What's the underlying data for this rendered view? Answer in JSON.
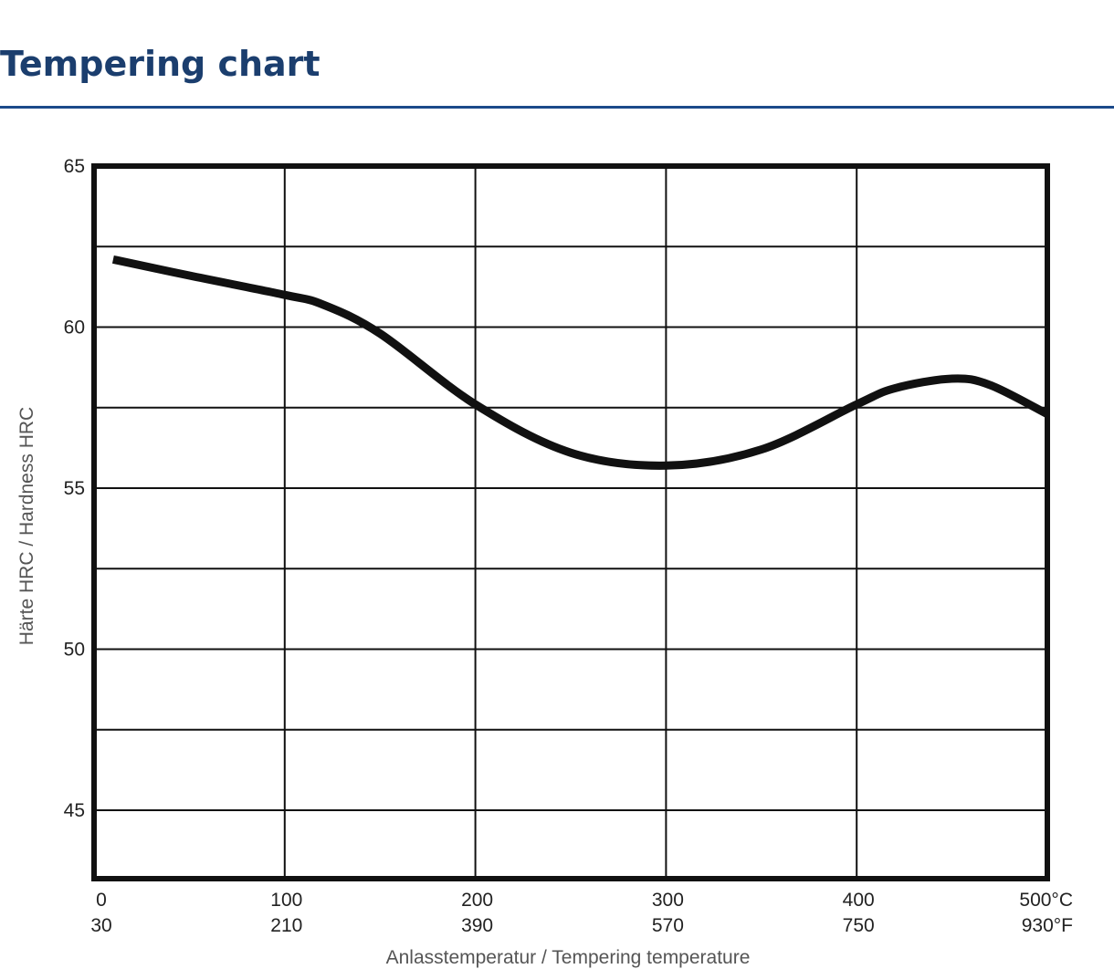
{
  "page": {
    "title": "Tempering chart"
  },
  "chart_data": {
    "type": "line",
    "title": "",
    "xlabel": "Anlasstemperatur / Tempering temperature",
    "ylabel": "Härte HRC / Hardness HRC",
    "xlim": [
      0,
      500
    ],
    "ylim": [
      42.875,
      65
    ],
    "grid": true,
    "line_color": "#111111",
    "y_ticks": [
      {
        "value": 65,
        "label": "65"
      },
      {
        "value": 60,
        "label": "60"
      },
      {
        "value": 55,
        "label": "55"
      },
      {
        "value": 50,
        "label": "50"
      },
      {
        "value": 45,
        "label": "45"
      }
    ],
    "y_gridlines": [
      62.5,
      60,
      57.5,
      55,
      52.5,
      50,
      47.5,
      45
    ],
    "x_ticks": [
      {
        "value": 0,
        "label_c": "0",
        "label_f": "30"
      },
      {
        "value": 100,
        "label_c": "100",
        "label_f": "210"
      },
      {
        "value": 200,
        "label_c": "200",
        "label_f": "390"
      },
      {
        "value": 300,
        "label_c": "300",
        "label_f": "570"
      },
      {
        "value": 400,
        "label_c": "400",
        "label_f": "750"
      },
      {
        "value": 500,
        "label_c": "500°C",
        "label_f": "930°F"
      }
    ],
    "series": [
      {
        "x": [
          10,
          50,
          100,
          120,
          150,
          200,
          250,
          300,
          350,
          400,
          420,
          450,
          470,
          500
        ],
        "y": [
          62.1,
          61.6,
          61.0,
          60.7,
          59.8,
          57.6,
          56.1,
          55.7,
          56.2,
          57.6,
          58.1,
          58.4,
          58.2,
          57.3
        ]
      }
    ]
  }
}
